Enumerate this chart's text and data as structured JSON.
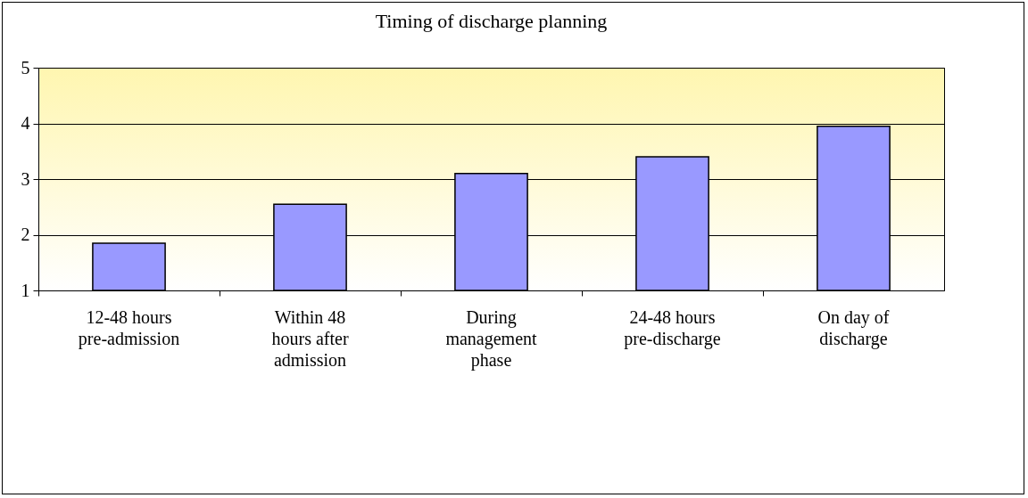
{
  "chart_data": {
    "type": "bar",
    "title": "Timing of discharge planning",
    "categories": [
      "12-48 hours pre-admission",
      "Within 48 hours after admission",
      "During management phase",
      "24-48 hours pre-discharge",
      "On day of discharge"
    ],
    "values": [
      1.85,
      2.55,
      3.1,
      3.4,
      3.95
    ],
    "color": "#9999ff",
    "ylim": [
      1,
      5
    ],
    "yticks": [
      1,
      2,
      3,
      4,
      5
    ],
    "grid": "y"
  }
}
